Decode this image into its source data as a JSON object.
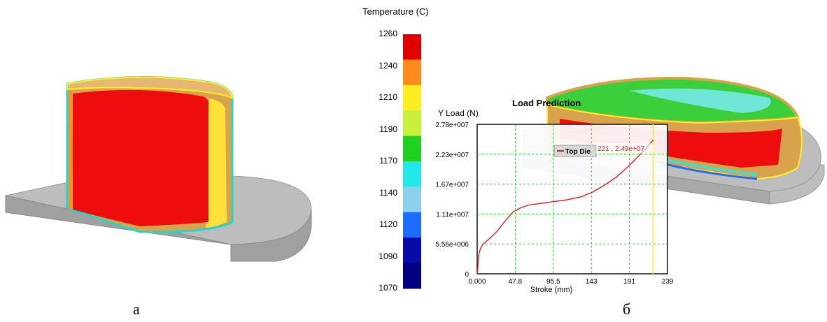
{
  "legend": {
    "title": "Temperature (C)",
    "ticks": [
      "1260",
      "1240",
      "1210",
      "1190",
      "1170",
      "1140",
      "1120",
      "1090",
      "1070"
    ],
    "colors": [
      "#e00000",
      "#ff8c1a",
      "#ffee22",
      "#c8f03a",
      "#22d022",
      "#22e8e8",
      "#8ccfea",
      "#1c6cff",
      "#0a0aa8",
      "#000080"
    ]
  },
  "captions": {
    "left": "а",
    "right": "б"
  },
  "chart_data": {
    "type": "line",
    "title": "Load Prediction",
    "ylabel": "Y Load (N)",
    "xlabel": "Stroke (mm)",
    "x_ticks": [
      "0.000",
      "47.8",
      "95.5",
      "143",
      "191",
      "239"
    ],
    "y_ticks": [
      "0",
      "5.56e+006",
      "1.11e+007",
      "1.67e+007",
      "2.23e+007",
      "2.78e+007"
    ],
    "xlim": [
      0,
      239
    ],
    "ylim": [
      0,
      27800000
    ],
    "grid": true,
    "legend_label": "Top Die",
    "cursor_label": "221 , 2.49e+07",
    "cursor_x": 221,
    "series": [
      {
        "name": "Top Die",
        "color": "#e02020",
        "x": [
          0,
          1,
          2,
          4,
          8,
          15,
          25,
          35,
          45,
          55,
          65,
          75,
          90,
          110,
          130,
          145,
          160,
          175,
          190,
          200,
          210,
          221
        ],
        "y": [
          0,
          1500000,
          3500000,
          4700000,
          5600000,
          6500000,
          7900000,
          9800000,
          11500000,
          12300000,
          12800000,
          13000000,
          13300000,
          13700000,
          14300000,
          15200000,
          16500000,
          18000000,
          20000000,
          21500000,
          23000000,
          24900000
        ]
      }
    ]
  }
}
